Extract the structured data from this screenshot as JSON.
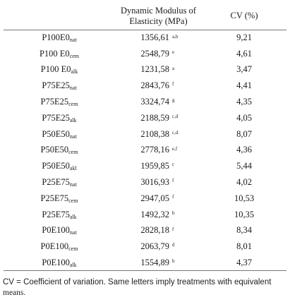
{
  "header": {
    "treatment": "",
    "modulus_line1": "Dynamic Modulus of",
    "modulus_line2": "Elasticity (MPa)",
    "cv": "CV (%)"
  },
  "rows": [
    {
      "base": "P100E0",
      "sub": "nat",
      "value": "1356,61",
      "letters": "a,b",
      "cv": "9,21"
    },
    {
      "base": "P100 E0",
      "sub": "cem",
      "value": "2548,79",
      "letters": "e",
      "cv": "4,61"
    },
    {
      "base": "P100 E0",
      "sub": "alk",
      "value": "1231,58",
      "letters": "a",
      "cv": "3,47"
    },
    {
      "base": "P75E25",
      "sub": "nat",
      "value": "2843,76",
      "letters": "f",
      "cv": "4,41"
    },
    {
      "base": "P75E25",
      "sub": "cem",
      "value": "3324,74",
      "letters": "g",
      "cv": "4,35"
    },
    {
      "base": "P75E25",
      "sub": "alk",
      "value": "2188,59",
      "letters": "c,d",
      "cv": "4,05"
    },
    {
      "base": "P50E50",
      "sub": "nat",
      "value": "2108,38",
      "letters": "c,d",
      "cv": "8,07"
    },
    {
      "base": "P50E50",
      "sub": "cem",
      "value": "2778,16",
      "letters": "e,f",
      "cv": "4,36"
    },
    {
      "base": "P50E50",
      "sub": "akl",
      "value": "1959,85",
      "letters": "c",
      "cv": "5,44"
    },
    {
      "base": "P25E75",
      "sub": "nat",
      "value": "3016,93",
      "letters": "f",
      "cv": "4,02"
    },
    {
      "base": "P25E75",
      "sub": "cem",
      "value": "2947,05",
      "letters": "f",
      "cv": "10,53"
    },
    {
      "base": "P25E75",
      "sub": "alk",
      "value": "1492,32",
      "letters": "b",
      "cv": "10,35"
    },
    {
      "base": "P0E100",
      "sub": "nat",
      "value": "2828,18",
      "letters": "f",
      "cv": "8,34"
    },
    {
      "base": "P0E100",
      "sub": "cem",
      "value": "2063,79",
      "letters": "d",
      "cv": "8,01"
    },
    {
      "base": "P0E100",
      "sub": "alk",
      "value": "1554,89",
      "letters": "b",
      "cv": "4,37"
    }
  ],
  "footnote": {
    "line1": "CV = Coefficient of variation. Same letters imply treatments with equivalent",
    "line2": "means."
  }
}
